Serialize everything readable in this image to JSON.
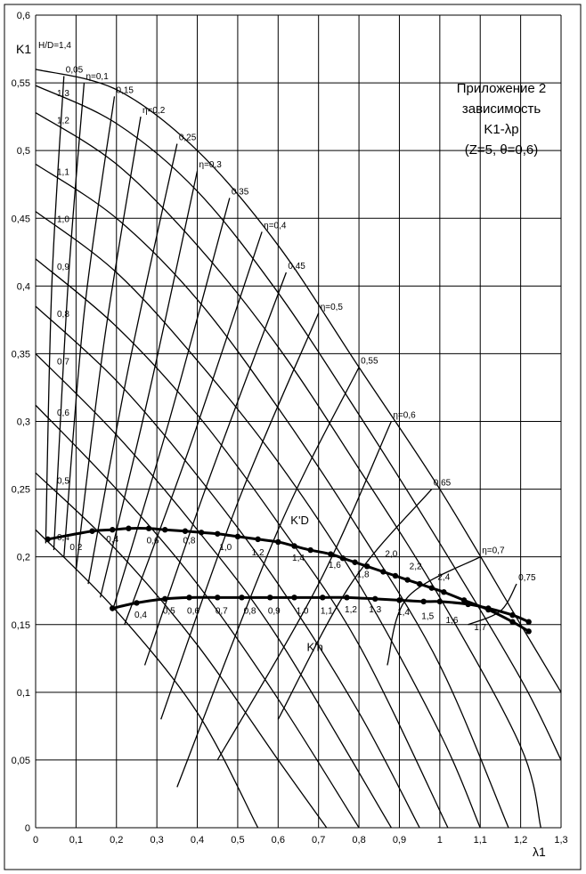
{
  "chart_data": {
    "type": "line",
    "xlabel": "λ1",
    "ylabel": "K1",
    "info_lines": [
      "Приложение 2",
      "зависимость",
      "K1-λp",
      "(Z=5, θ=0,6)"
    ],
    "xlim": [
      0,
      1.3
    ],
    "ylim": [
      0,
      0.6
    ],
    "xticks": [
      0,
      {
        "value": 0.1,
        "label": "0,1"
      },
      {
        "value": 0.2,
        "label": "0,2"
      },
      {
        "value": 0.3,
        "label": "0,3"
      },
      {
        "value": 0.4,
        "label": "0,4"
      },
      {
        "value": 0.5,
        "label": "0,5"
      },
      {
        "value": 0.6,
        "label": "0,6"
      },
      {
        "value": 0.7,
        "label": "0,7"
      },
      {
        "value": 0.8,
        "label": "0,8"
      },
      {
        "value": 0.9,
        "label": "0,9"
      },
      1,
      {
        "value": 1.1,
        "label": "1,1"
      },
      {
        "value": 1.2,
        "label": "1,2"
      },
      {
        "value": 1.3,
        "label": "1,3"
      }
    ],
    "yticks": [
      0,
      {
        "value": 0.05,
        "label": "0,05"
      },
      {
        "value": 0.1,
        "label": "0,1"
      },
      {
        "value": 0.15,
        "label": "0,15"
      },
      {
        "value": 0.2,
        "label": "0,2"
      },
      {
        "value": 0.25,
        "label": "0,25"
      },
      {
        "value": 0.3,
        "label": "0,3"
      },
      {
        "value": 0.35,
        "label": "0,35"
      },
      {
        "value": 0.4,
        "label": "0,4"
      },
      {
        "value": 0.45,
        "label": "0,45"
      },
      {
        "value": 0.5,
        "label": "0,5"
      },
      {
        "value": 0.55,
        "label": "0,55"
      },
      {
        "value": 0.6,
        "label": "0,6"
      }
    ],
    "grid": true,
    "color": "#000000",
    "hd_curves": [
      {
        "name": "H/D=1,4",
        "x": [
          0,
          0.2,
          0.4,
          0.6,
          0.8,
          1.0,
          1.2,
          1.3
        ],
        "values": [
          0.56,
          0.545,
          0.5,
          0.43,
          0.34,
          0.25,
          0.15,
          0.1
        ]
      },
      {
        "name": "1,3",
        "x": [
          0,
          0.2,
          0.4,
          0.6,
          0.8,
          1.0,
          1.2,
          1.3
        ],
        "values": [
          0.548,
          0.52,
          0.47,
          0.395,
          0.305,
          0.21,
          0.11,
          0.05
        ]
      },
      {
        "name": "1,2",
        "x": [
          0,
          0.2,
          0.4,
          0.6,
          0.8,
          1.0,
          1.2,
          1.25
        ],
        "values": [
          0.528,
          0.49,
          0.43,
          0.355,
          0.265,
          0.17,
          0.06,
          0
        ]
      },
      {
        "name": "1,1",
        "x": [
          0,
          0.2,
          0.4,
          0.6,
          0.8,
          1.0,
          1.17
        ],
        "values": [
          0.49,
          0.45,
          0.39,
          0.31,
          0.22,
          0.12,
          0
        ]
      },
      {
        "name": "1,0",
        "x": [
          0,
          0.2,
          0.4,
          0.6,
          0.8,
          1.0,
          1.1
        ],
        "values": [
          0.455,
          0.41,
          0.345,
          0.27,
          0.18,
          0.07,
          0
        ]
      },
      {
        "name": "0,9",
        "x": [
          0,
          0.2,
          0.4,
          0.6,
          0.8,
          1.02
        ],
        "values": [
          0.42,
          0.37,
          0.305,
          0.225,
          0.135,
          0
        ]
      },
      {
        "name": "0,8",
        "x": [
          0,
          0.2,
          0.4,
          0.6,
          0.8,
          0.95
        ],
        "values": [
          0.385,
          0.33,
          0.26,
          0.18,
          0.085,
          0
        ]
      },
      {
        "name": "0,7",
        "x": [
          0,
          0.2,
          0.4,
          0.6,
          0.88
        ],
        "values": [
          0.35,
          0.29,
          0.22,
          0.14,
          0
        ]
      },
      {
        "name": "0,6",
        "x": [
          0,
          0.2,
          0.4,
          0.6,
          0.8
        ],
        "values": [
          0.312,
          0.25,
          0.18,
          0.095,
          0
        ]
      },
      {
        "name": "0,5",
        "x": [
          0,
          0.2,
          0.4,
          0.6,
          0.72
        ],
        "values": [
          0.262,
          0.205,
          0.135,
          0.05,
          0
        ]
      },
      {
        "name": "0,4",
        "x": [
          0,
          0.2,
          0.4,
          0.55
        ],
        "values": [
          0.22,
          0.16,
          0.085,
          0
        ]
      }
    ],
    "eta_curves": [
      {
        "name": "0,05",
        "x": [
          0.025,
          0.04,
          0.07
        ],
        "values": [
          0.21,
          0.4,
          0.555
        ]
      },
      {
        "name": "η=0,1",
        "x": [
          0.045,
          0.08,
          0.12
        ],
        "values": [
          0.205,
          0.4,
          0.55
        ]
      },
      {
        "name": "0,15",
        "x": [
          0.07,
          0.12,
          0.195
        ],
        "values": [
          0.2,
          0.38,
          0.54
        ]
      },
      {
        "name": "η=0,2",
        "x": [
          0.1,
          0.17,
          0.26
        ],
        "values": [
          0.19,
          0.36,
          0.525
        ]
      },
      {
        "name": "0,25",
        "x": [
          0.13,
          0.23,
          0.35
        ],
        "values": [
          0.18,
          0.34,
          0.505
        ]
      },
      {
        "name": "η=0,3",
        "x": [
          0.16,
          0.28,
          0.4
        ],
        "values": [
          0.17,
          0.32,
          0.485
        ]
      },
      {
        "name": "0,35",
        "x": [
          0.19,
          0.33,
          0.48
        ],
        "values": [
          0.16,
          0.3,
          0.465
        ]
      },
      {
        "name": "η=0,4",
        "x": [
          0.22,
          0.38,
          0.56
        ],
        "values": [
          0.15,
          0.28,
          0.44
        ]
      },
      {
        "name": "0,45",
        "x": [
          0.27,
          0.42,
          0.62
        ],
        "values": [
          0.12,
          0.25,
          0.41
        ]
      },
      {
        "name": "η=0,5",
        "x": [
          0.31,
          0.5,
          0.7
        ],
        "values": [
          0.08,
          0.24,
          0.38
        ]
      },
      {
        "name": "0,55",
        "x": [
          0.35,
          0.6,
          0.8
        ],
        "values": [
          0.03,
          0.22,
          0.34
        ]
      },
      {
        "name": "η=0,6",
        "x": [
          0.45,
          0.7,
          0.88
        ],
        "values": [
          0.05,
          0.18,
          0.3
        ]
      },
      {
        "name": "0,65",
        "x": [
          0.6,
          0.78,
          0.98
        ],
        "values": [
          0.08,
          0.18,
          0.25
        ]
      },
      {
        "name": "η=0,7",
        "x": [
          0.87,
          0.92,
          1.1
        ],
        "values": [
          0.12,
          0.17,
          0.2
        ]
      },
      {
        "name": "0,75",
        "x": [
          1.07,
          1.15,
          1.19
        ],
        "values": [
          0.15,
          0.16,
          0.18
        ]
      }
    ],
    "k_curves": [
      {
        "name": "K'D",
        "x": [
          0.03,
          0.14,
          0.19,
          0.23,
          0.28,
          0.32,
          0.37,
          0.41,
          0.45,
          0.5,
          0.55,
          0.6,
          0.64,
          0.68,
          0.73,
          0.76,
          0.79,
          0.82,
          0.86,
          0.89,
          0.92,
          0.95,
          0.98,
          1.01,
          1.06,
          1.12,
          1.18,
          1.22
        ],
        "values": [
          0.213,
          0.219,
          0.22,
          0.221,
          0.221,
          0.22,
          0.219,
          0.218,
          0.217,
          0.215,
          0.213,
          0.211,
          0.208,
          0.205,
          0.202,
          0.199,
          0.196,
          0.193,
          0.189,
          0.186,
          0.183,
          0.18,
          0.177,
          0.174,
          0.168,
          0.161,
          0.152,
          0.145
        ]
      },
      {
        "name": "K'n",
        "x": [
          0.19,
          0.25,
          0.32,
          0.38,
          0.45,
          0.51,
          0.58,
          0.64,
          0.71,
          0.77,
          0.84,
          0.9,
          0.96,
          1.0,
          1.07,
          1.12,
          1.18,
          1.22
        ],
        "values": [
          0.162,
          0.166,
          0.169,
          0.17,
          0.17,
          0.17,
          0.17,
          0.17,
          0.17,
          0.17,
          0.169,
          0.168,
          0.167,
          0.167,
          0.165,
          0.162,
          0.157,
          0.152
        ]
      }
    ],
    "annotations": [
      {
        "text": "0,2",
        "x": 0.1,
        "y": 0.205
      },
      {
        "text": "0,4",
        "x": 0.19,
        "y": 0.211
      },
      {
        "text": "0,6",
        "x": 0.29,
        "y": 0.21
      },
      {
        "text": "0,8",
        "x": 0.38,
        "y": 0.21
      },
      {
        "text": "1,0",
        "x": 0.47,
        "y": 0.205
      },
      {
        "text": "1,2",
        "x": 0.55,
        "y": 0.201
      },
      {
        "text": "1,4",
        "x": 0.65,
        "y": 0.197
      },
      {
        "text": "1,6",
        "x": 0.74,
        "y": 0.192
      },
      {
        "text": "1,8",
        "x": 0.81,
        "y": 0.185
      },
      {
        "text": "2,0",
        "x": 0.88,
        "y": 0.2
      },
      {
        "text": "2,2",
        "x": 0.94,
        "y": 0.191
      },
      {
        "text": "2,4",
        "x": 1.01,
        "y": 0.183
      },
      {
        "text": "0,4",
        "x": 0.26,
        "y": 0.155
      },
      {
        "text": "0,5",
        "x": 0.33,
        "y": 0.158
      },
      {
        "text": "0,6",
        "x": 0.39,
        "y": 0.158
      },
      {
        "text": "0,7",
        "x": 0.46,
        "y": 0.158
      },
      {
        "text": "0,8",
        "x": 0.53,
        "y": 0.158
      },
      {
        "text": "0,9",
        "x": 0.59,
        "y": 0.158
      },
      {
        "text": "1,0",
        "x": 0.66,
        "y": 0.158
      },
      {
        "text": "1,1",
        "x": 0.72,
        "y": 0.158
      },
      {
        "text": "1,2",
        "x": 0.78,
        "y": 0.159
      },
      {
        "text": "1,3",
        "x": 0.84,
        "y": 0.159
      },
      {
        "text": "1,4",
        "x": 0.91,
        "y": 0.157
      },
      {
        "text": "1,5",
        "x": 0.97,
        "y": 0.154
      },
      {
        "text": "1,6",
        "x": 1.03,
        "y": 0.151
      },
      {
        "text": "1,7",
        "x": 1.1,
        "y": 0.146
      }
    ]
  }
}
